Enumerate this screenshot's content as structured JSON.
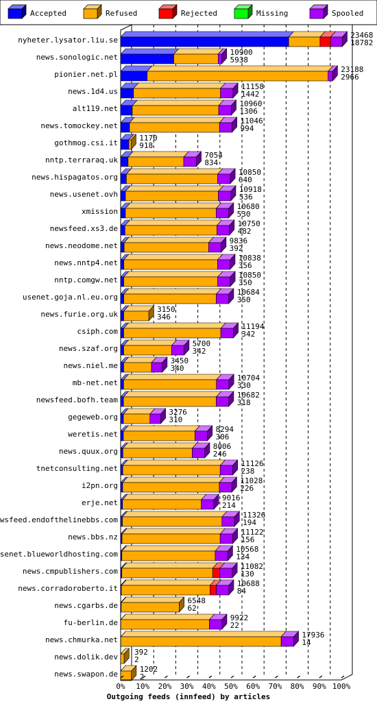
{
  "chart_data": {
    "type": "bar",
    "title": "Outgoing feeds (innfeed) by articles",
    "xlabel": "Outgoing feeds (innfeed) by articles",
    "ylabel": "",
    "legend_placement": "top",
    "series": [
      {
        "name": "Accepted",
        "color": "#0000ff"
      },
      {
        "name": "Refused",
        "color": "#ffaa00"
      },
      {
        "name": "Rejected",
        "color": "#ff0000"
      },
      {
        "name": "Missing",
        "color": "#00ff00"
      },
      {
        "name": "Spooled",
        "color": "#aa00ff"
      }
    ],
    "x_ticks": [
      "0%",
      "10%",
      "20%",
      "30%",
      "40%",
      "50%",
      "60%",
      "70%",
      "80%",
      "90%",
      "100%"
    ],
    "xlim": [
      0,
      100
    ],
    "grid": true,
    "rows": [
      {
        "name": "nyheter.lysator.liu.se",
        "total": 23468,
        "count": 18782,
        "accepted": 18782,
        "refused": 3500,
        "rejected": 1186,
        "missing": 0,
        "spooled": 1300
      },
      {
        "name": "news.sonologic.net",
        "total": 10900,
        "count": 5938,
        "accepted": 5938,
        "refused": 4962,
        "rejected": 0,
        "missing": 0,
        "spooled": 400
      },
      {
        "name": "pionier.net.pl",
        "total": 23188,
        "count": 2966,
        "accepted": 2966,
        "refused": 20222,
        "rejected": 0,
        "missing": 0,
        "spooled": 500
      },
      {
        "name": "news.1d4.us",
        "total": 11158,
        "count": 1442,
        "accepted": 1442,
        "refused": 9716,
        "rejected": 0,
        "missing": 0,
        "spooled": 1400
      },
      {
        "name": "alt119.net",
        "total": 10960,
        "count": 1306,
        "accepted": 1306,
        "refused": 9654,
        "rejected": 0,
        "missing": 0,
        "spooled": 1400
      },
      {
        "name": "news.tomockey.net",
        "total": 11046,
        "count": 994,
        "accepted": 994,
        "refused": 10052,
        "rejected": 0,
        "missing": 0,
        "spooled": 1400
      },
      {
        "name": "gothmog.csi.it",
        "total": 1170,
        "count": 918,
        "accepted": 918,
        "refused": 252,
        "rejected": 0,
        "missing": 0,
        "spooled": 0
      },
      {
        "name": "nntp.terraraq.uk",
        "total": 7054,
        "count": 834,
        "accepted": 834,
        "refused": 6220,
        "rejected": 0,
        "missing": 0,
        "spooled": 1400
      },
      {
        "name": "news.hispagatos.org",
        "total": 10850,
        "count": 640,
        "accepted": 640,
        "refused": 10210,
        "rejected": 0,
        "missing": 0,
        "spooled": 1400
      },
      {
        "name": "news.usenet.ovh",
        "total": 10918,
        "count": 536,
        "accepted": 536,
        "refused": 10382,
        "rejected": 0,
        "missing": 0,
        "spooled": 1400
      },
      {
        "name": "xmission",
        "total": 10680,
        "count": 530,
        "accepted": 530,
        "refused": 10150,
        "rejected": 0,
        "missing": 0,
        "spooled": 1400
      },
      {
        "name": "newsfeed.xs3.de",
        "total": 10750,
        "count": 482,
        "accepted": 482,
        "refused": 10268,
        "rejected": 0,
        "missing": 0,
        "spooled": 1400
      },
      {
        "name": "news.neodome.net",
        "total": 9836,
        "count": 392,
        "accepted": 392,
        "refused": 9444,
        "rejected": 0,
        "missing": 0,
        "spooled": 1400
      },
      {
        "name": "news.nntp4.net",
        "total": 10838,
        "count": 356,
        "accepted": 356,
        "refused": 10482,
        "rejected": 0,
        "missing": 0,
        "spooled": 1400
      },
      {
        "name": "nntp.comgw.net",
        "total": 10850,
        "count": 350,
        "accepted": 350,
        "refused": 10500,
        "rejected": 0,
        "missing": 0,
        "spooled": 1400
      },
      {
        "name": "usenet.goja.nl.eu.org",
        "total": 10684,
        "count": 350,
        "accepted": 350,
        "refused": 10334,
        "rejected": 0,
        "missing": 0,
        "spooled": 1400
      },
      {
        "name": "news.furie.org.uk",
        "total": 3150,
        "count": 346,
        "accepted": 346,
        "refused": 2804,
        "rejected": 0,
        "missing": 0,
        "spooled": 0
      },
      {
        "name": "csiph.com",
        "total": 11194,
        "count": 342,
        "accepted": 342,
        "refused": 10852,
        "rejected": 0,
        "missing": 0,
        "spooled": 1400
      },
      {
        "name": "news.szaf.org",
        "total": 5700,
        "count": 342,
        "accepted": 342,
        "refused": 5358,
        "rejected": 0,
        "missing": 0,
        "spooled": 1400
      },
      {
        "name": "news.niel.me",
        "total": 3450,
        "count": 340,
        "accepted": 340,
        "refused": 3110,
        "rejected": 0,
        "missing": 0,
        "spooled": 1200
      },
      {
        "name": "mb-net.net",
        "total": 10704,
        "count": 330,
        "accepted": 330,
        "refused": 10374,
        "rejected": 0,
        "missing": 0,
        "spooled": 1400
      },
      {
        "name": "newsfeed.bofh.team",
        "total": 10682,
        "count": 318,
        "accepted": 318,
        "refused": 10364,
        "rejected": 0,
        "missing": 0,
        "spooled": 1400
      },
      {
        "name": "gegeweb.org",
        "total": 3276,
        "count": 310,
        "accepted": 310,
        "refused": 2966,
        "rejected": 0,
        "missing": 0,
        "spooled": 1200
      },
      {
        "name": "weretis.net",
        "total": 8294,
        "count": 306,
        "accepted": 306,
        "refused": 7988,
        "rejected": 0,
        "missing": 0,
        "spooled": 1400
      },
      {
        "name": "news.quux.org",
        "total": 8006,
        "count": 246,
        "accepted": 246,
        "refused": 7760,
        "rejected": 0,
        "missing": 0,
        "spooled": 1400
      },
      {
        "name": "tnetconsulting.net",
        "total": 11126,
        "count": 238,
        "accepted": 238,
        "refused": 10888,
        "rejected": 0,
        "missing": 0,
        "spooled": 1400
      },
      {
        "name": "i2pn.org",
        "total": 11028,
        "count": 226,
        "accepted": 226,
        "refused": 10802,
        "rejected": 0,
        "missing": 0,
        "spooled": 1400
      },
      {
        "name": "erje.net",
        "total": 9016,
        "count": 214,
        "accepted": 214,
        "refused": 8802,
        "rejected": 0,
        "missing": 0,
        "spooled": 1400
      },
      {
        "name": "newsfeed.endofthelinebbs.com",
        "total": 11326,
        "count": 194,
        "accepted": 194,
        "refused": 11132,
        "rejected": 0,
        "missing": 0,
        "spooled": 1400
      },
      {
        "name": "news.bbs.nz",
        "total": 11122,
        "count": 156,
        "accepted": 156,
        "refused": 10966,
        "rejected": 0,
        "missing": 0,
        "spooled": 1400
      },
      {
        "name": "usenet.blueworldhosting.com",
        "total": 10568,
        "count": 134,
        "accepted": 134,
        "refused": 10434,
        "rejected": 0,
        "missing": 0,
        "spooled": 1400
      },
      {
        "name": "news.cmpublishers.com",
        "total": 11082,
        "count": 130,
        "accepted": 130,
        "refused": 10152,
        "rejected": 800,
        "missing": 0,
        "spooled": 1400
      },
      {
        "name": "news.corradoroberto.it",
        "total": 10688,
        "count": 84,
        "accepted": 84,
        "refused": 9904,
        "rejected": 700,
        "missing": 0,
        "spooled": 1400
      },
      {
        "name": "news.cgarbs.de",
        "total": 6548,
        "count": 62,
        "accepted": 62,
        "refused": 6486,
        "rejected": 0,
        "missing": 0,
        "spooled": 0
      },
      {
        "name": "fu-berlin.de",
        "total": 9922,
        "count": 22,
        "accepted": 22,
        "refused": 9900,
        "rejected": 0,
        "missing": 0,
        "spooled": 1400
      },
      {
        "name": "news.chmurka.net",
        "total": 17936,
        "count": 14,
        "accepted": 14,
        "refused": 17922,
        "rejected": 0,
        "missing": 0,
        "spooled": 1400
      },
      {
        "name": "news.dolik.dev",
        "total": 392,
        "count": 2,
        "accepted": 2,
        "refused": 390,
        "rejected": 0,
        "missing": 0,
        "spooled": 0
      },
      {
        "name": "news.swapon.de",
        "total": 1202,
        "count": 2,
        "accepted": 2,
        "refused": 1200,
        "rejected": 0,
        "missing": 0,
        "spooled": 0
      }
    ]
  }
}
